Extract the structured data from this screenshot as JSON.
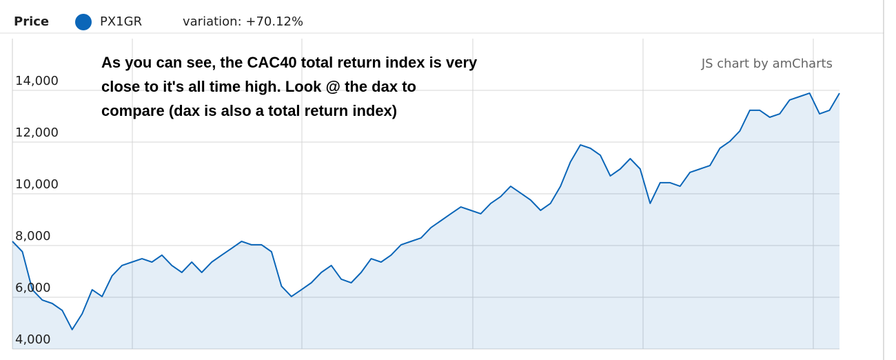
{
  "chart_data": {
    "type": "area",
    "title": "Price",
    "variation": "variation: +70.12%",
    "credit": "JS chart by amCharts",
    "annotation": [
      "As you can see, the CAC40 total return index is very",
      "close to it's all time high. Look @ the dax to",
      "compare (dax is also a total return index)"
    ],
    "series": [
      {
        "name": "PX1GR",
        "color": "#0b66b8",
        "values": [
          8160,
          7760,
          6290,
          5890,
          5760,
          5490,
          4750,
          5360,
          6290,
          6030,
          6830,
          7230,
          7360,
          7490,
          7360,
          7630,
          7230,
          6960,
          7360,
          6960,
          7360,
          7630,
          7890,
          8160,
          8030,
          8030,
          7760,
          6430,
          6030,
          6290,
          6560,
          6960,
          7230,
          6700,
          6560,
          6960,
          7490,
          7360,
          7630,
          8030,
          8160,
          8290,
          8690,
          8960,
          9230,
          9490,
          9360,
          9230,
          9630,
          9890,
          10290,
          10030,
          9760,
          9360,
          9630,
          10290,
          11230,
          11890,
          11760,
          11490,
          10690,
          10960,
          11360,
          10960,
          9630,
          10430,
          10430,
          10290,
          10830,
          10960,
          11090,
          11760,
          12030,
          12430,
          13230,
          13230,
          12960,
          13090,
          13630,
          13760,
          13890,
          13090,
          13230,
          13890
        ]
      }
    ],
    "ylim": [
      4000,
      16000
    ],
    "yticks": [
      {
        "value": 4000,
        "label": "4,000"
      },
      {
        "value": 6000,
        "label": "6,000"
      },
      {
        "value": 8000,
        "label": "8,000"
      },
      {
        "value": 10000,
        "label": "10,000"
      },
      {
        "value": 12000,
        "label": "12,000"
      },
      {
        "value": 14000,
        "label": "14,000"
      }
    ],
    "grid": true
  }
}
